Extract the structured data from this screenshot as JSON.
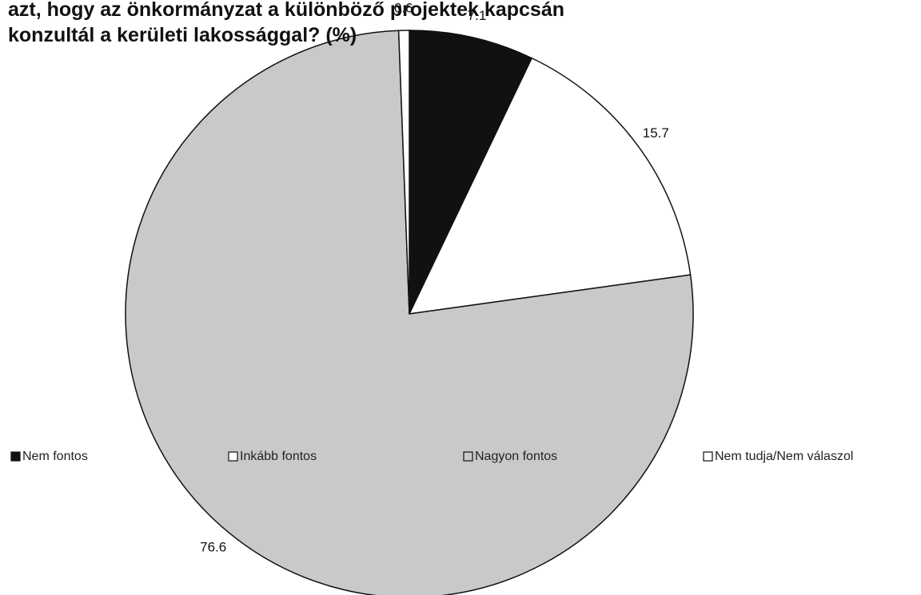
{
  "chart_data": {
    "type": "pie",
    "title": [
      "azt, hogy az önkormányzat a különböző projektek kapcsán",
      "konzultál a kerületi lakossággal? (%)"
    ],
    "categories": [
      "Nem fontos",
      "Inkább fontos",
      "Nagyon fontos",
      "Nem tudja/Nem válaszol"
    ],
    "values": [
      7.1,
      15.7,
      76.6,
      0.6
    ],
    "colors": [
      "#111111",
      "#ffffff",
      "#c9c9c9",
      "#ffffff"
    ]
  }
}
